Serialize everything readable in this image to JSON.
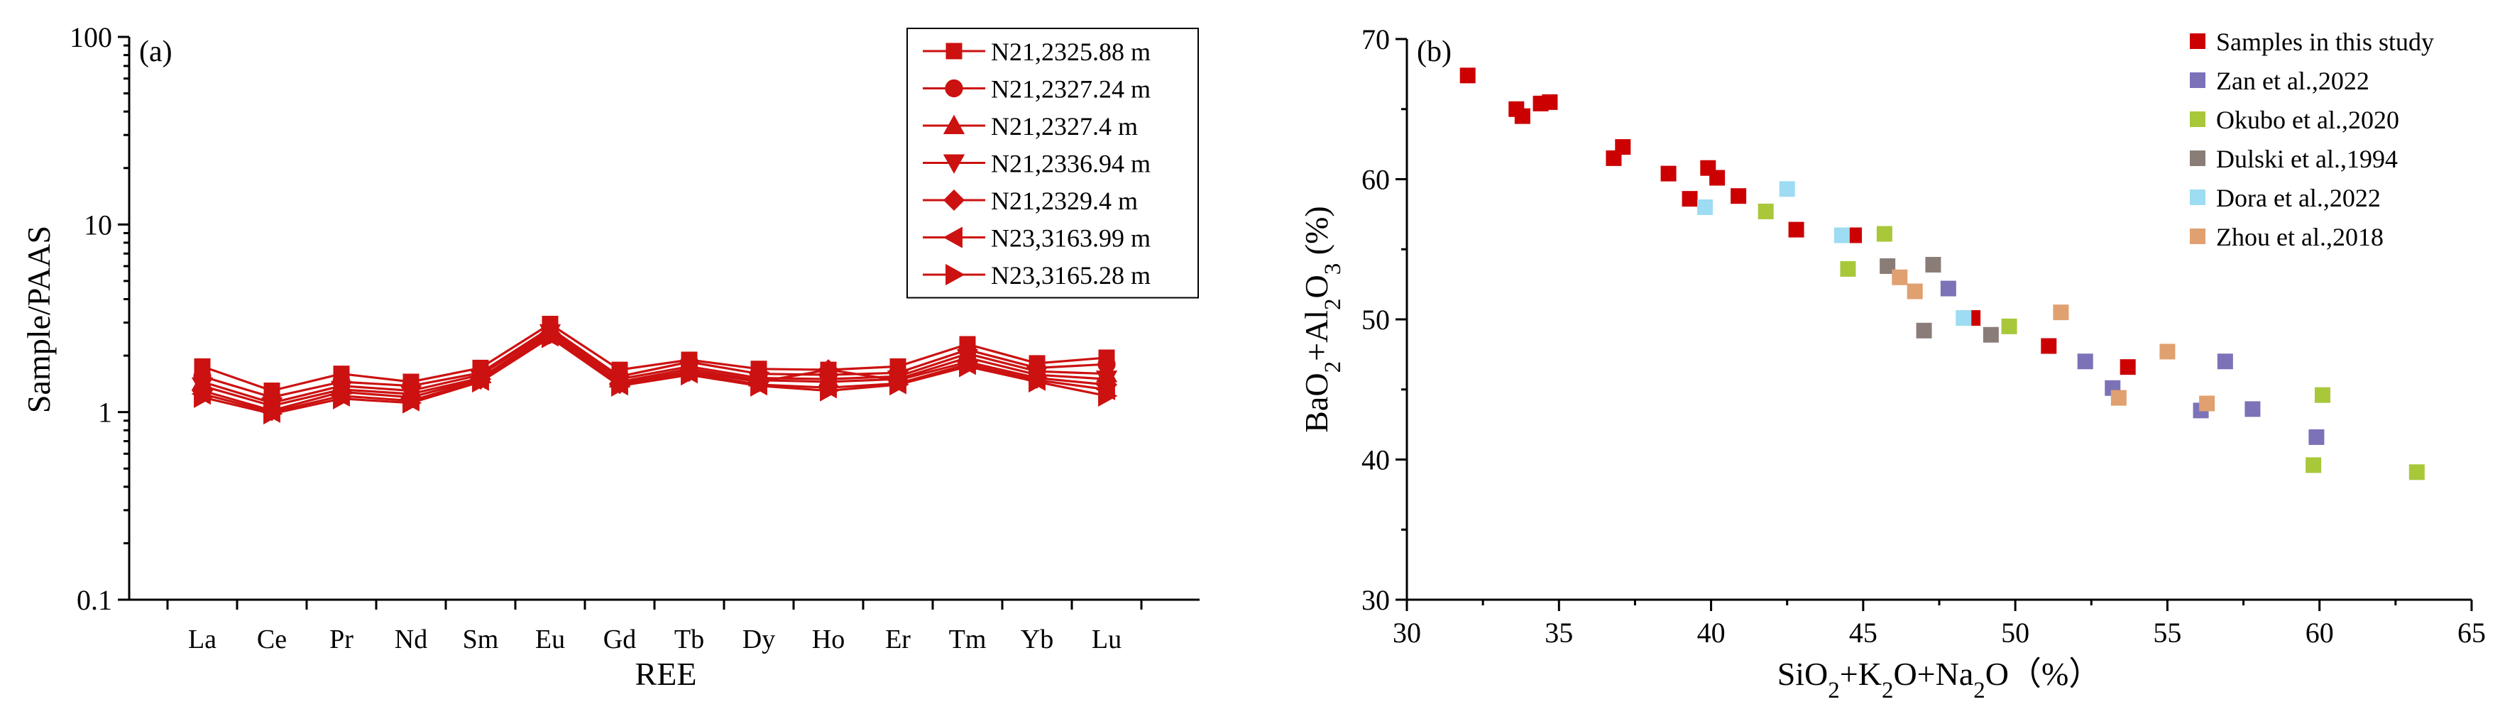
{
  "chart_data": [
    {
      "type": "line",
      "panel_label": "(a)",
      "xlabel": "REE",
      "ylabel": "Sample/PAAS",
      "y_scale": "log",
      "ylim": [
        0.1,
        100
      ],
      "y_ticks": [
        "0.1",
        "1",
        "10",
        "100"
      ],
      "categories": [
        "La",
        "Ce",
        "Pr",
        "Nd",
        "Sm",
        "Eu",
        "Gd",
        "Tb",
        "Dy",
        "Ho",
        "Er",
        "Tm",
        "Yb",
        "Lu"
      ],
      "color": "#cc1111",
      "series": [
        {
          "name": "N21,2325.88 m",
          "marker": "square",
          "values": [
            1.75,
            1.3,
            1.6,
            1.45,
            1.72,
            2.95,
            1.68,
            1.9,
            1.7,
            1.68,
            1.75,
            2.3,
            1.82,
            1.95
          ]
        },
        {
          "name": "N21,2327.24 m",
          "marker": "circle",
          "values": [
            1.55,
            1.2,
            1.45,
            1.38,
            1.62,
            2.8,
            1.55,
            1.85,
            1.6,
            1.58,
            1.62,
            2.15,
            1.72,
            1.8
          ]
        },
        {
          "name": "N21,2327.4 m",
          "marker": "triangle-up",
          "values": [
            1.45,
            1.12,
            1.38,
            1.3,
            1.58,
            2.72,
            1.5,
            1.75,
            1.52,
            1.5,
            1.55,
            2.05,
            1.65,
            1.6
          ]
        },
        {
          "name": "N21,2336.94 m",
          "marker": "triangle-down",
          "values": [
            1.38,
            1.08,
            1.32,
            1.25,
            1.52,
            2.65,
            1.45,
            1.7,
            1.48,
            1.45,
            1.5,
            1.95,
            1.58,
            1.5
          ]
        },
        {
          "name": "N21,2329.4 m",
          "marker": "diamond",
          "values": [
            1.3,
            1.02,
            1.28,
            1.2,
            1.5,
            2.62,
            1.42,
            1.65,
            1.45,
            1.68,
            1.48,
            1.85,
            1.52,
            1.4
          ]
        },
        {
          "name": "N23,3163.99 m",
          "marker": "triangle-left",
          "values": [
            1.25,
            1.0,
            1.22,
            1.15,
            1.48,
            2.55,
            1.4,
            1.62,
            1.4,
            1.35,
            1.42,
            1.8,
            1.48,
            1.32
          ]
        },
        {
          "name": "N23,3165.28 m",
          "marker": "triangle-right",
          "values": [
            1.2,
            0.98,
            1.18,
            1.12,
            1.45,
            2.5,
            1.38,
            1.58,
            1.38,
            1.3,
            1.4,
            1.75,
            1.45,
            1.22
          ]
        }
      ]
    },
    {
      "type": "scatter",
      "panel_label": "(b)",
      "xlabel": "SiO₂+K₂O+Na₂O（%）",
      "ylabel": "BaO₂+Al₂O₃ (%)",
      "xlim": [
        30,
        65
      ],
      "ylim": [
        30,
        70
      ],
      "x_ticks": [
        30,
        35,
        40,
        45,
        50,
        55,
        60,
        65
      ],
      "y_ticks": [
        30,
        40,
        50,
        60,
        70
      ],
      "legend_position": "top-right",
      "series": [
        {
          "name": "Samples in this study",
          "color": "#cc0000",
          "points": [
            [
              32.0,
              67.4
            ],
            [
              33.6,
              65.0
            ],
            [
              33.8,
              64.5
            ],
            [
              34.4,
              65.4
            ],
            [
              34.7,
              65.5
            ],
            [
              36.8,
              61.5
            ],
            [
              37.1,
              62.3
            ],
            [
              38.6,
              60.4
            ],
            [
              39.3,
              58.6
            ],
            [
              39.9,
              60.8
            ],
            [
              40.2,
              60.1
            ],
            [
              40.9,
              58.8
            ],
            [
              42.8,
              56.4
            ],
            [
              44.7,
              56.0
            ],
            [
              48.6,
              50.1
            ],
            [
              51.1,
              48.1
            ],
            [
              53.7,
              46.6
            ]
          ]
        },
        {
          "name": "Zan et al.,2022",
          "color": "#7b72b8",
          "points": [
            [
              47.8,
              52.2
            ],
            [
              52.3,
              47.0
            ],
            [
              53.2,
              45.1
            ],
            [
              56.1,
              43.5
            ],
            [
              56.9,
              47.0
            ],
            [
              57.8,
              43.6
            ],
            [
              59.9,
              41.6
            ]
          ]
        },
        {
          "name": "Okubo et al.,2020",
          "color": "#a8c83a",
          "points": [
            [
              41.8,
              57.7
            ],
            [
              44.5,
              53.6
            ],
            [
              45.7,
              56.1
            ],
            [
              49.8,
              49.5
            ],
            [
              59.8,
              39.6
            ],
            [
              60.1,
              44.6
            ],
            [
              63.2,
              39.1
            ]
          ]
        },
        {
          "name": "Dulski et al.,1994",
          "color": "#8a7d78",
          "points": [
            [
              45.8,
              53.8
            ],
            [
              47.0,
              49.2
            ],
            [
              47.3,
              53.9
            ],
            [
              49.2,
              48.9
            ]
          ]
        },
        {
          "name": "Dora et al.,2022",
          "color": "#9ddcf2",
          "points": [
            [
              39.8,
              58.0
            ],
            [
              42.5,
              59.3
            ],
            [
              44.3,
              56.0
            ],
            [
              48.3,
              50.1
            ]
          ]
        },
        {
          "name": "Zhou et al.,2018",
          "color": "#e0a070",
          "points": [
            [
              46.2,
              53.0
            ],
            [
              46.7,
              52.0
            ],
            [
              51.5,
              50.5
            ],
            [
              53.4,
              44.4
            ],
            [
              55.0,
              47.7
            ],
            [
              56.3,
              44.0
            ]
          ]
        }
      ]
    }
  ]
}
